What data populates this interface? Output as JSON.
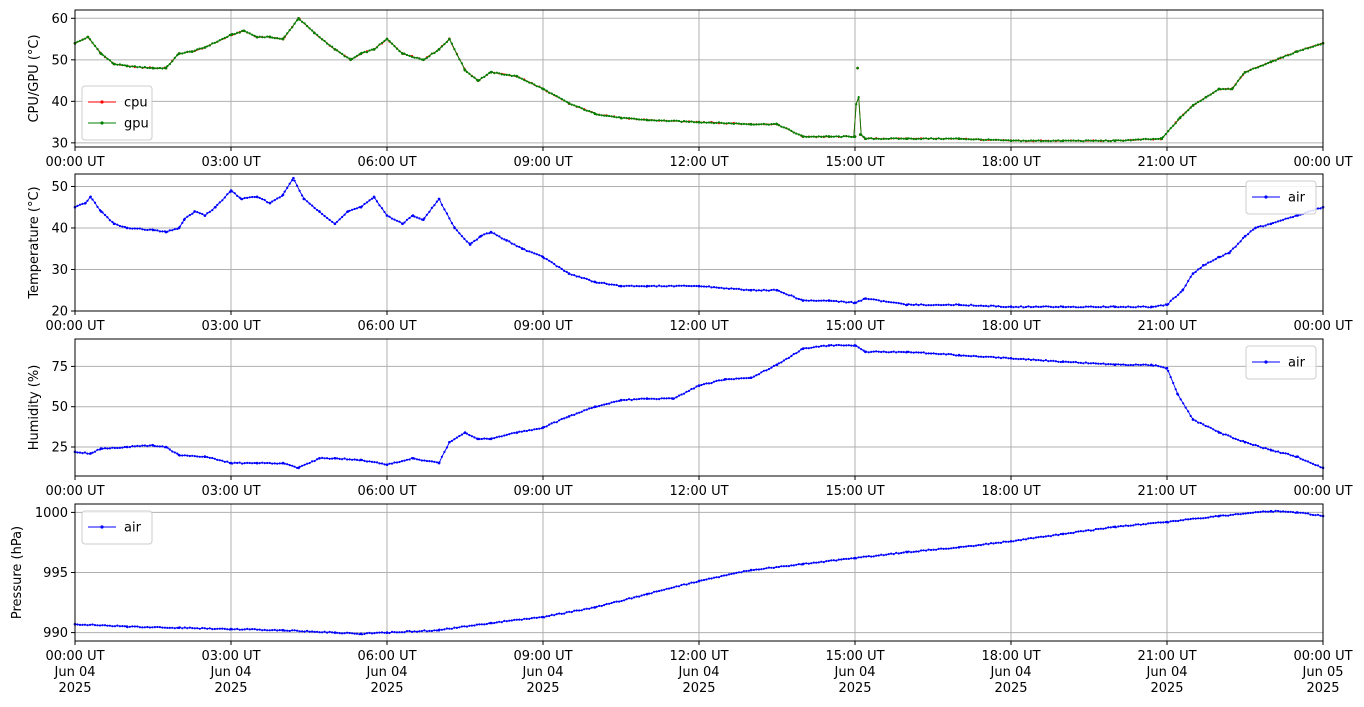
{
  "chart_data": [
    {
      "type": "line",
      "ylabel": "CPU/GPU (°C)",
      "xlim": [
        "00:00",
        "24:00"
      ],
      "ylim": [
        29,
        62
      ],
      "yticks": [
        30,
        40,
        50,
        60
      ],
      "xtick_labels": [
        "00:00 UT",
        "03:00 UT",
        "06:00 UT",
        "09:00 UT",
        "12:00 UT",
        "15:00 UT",
        "18:00 UT",
        "21:00 UT",
        "00:00 UT"
      ],
      "grid": true,
      "legend": "lower-left",
      "x": [
        0,
        0.25,
        0.5,
        0.75,
        1,
        1.5,
        1.75,
        2,
        2.25,
        2.5,
        3,
        3.25,
        3.5,
        3.75,
        4,
        4.3,
        4.6,
        5,
        5.3,
        5.5,
        5.75,
        6,
        6.3,
        6.7,
        7,
        7.2,
        7.5,
        7.75,
        8,
        8.5,
        9,
        9.5,
        10,
        10.5,
        11,
        12,
        13,
        13.5,
        14,
        14.5,
        15,
        15.05,
        15.1,
        15.2,
        16,
        17,
        18,
        19,
        20,
        20.9,
        21.25,
        21.5,
        21.75,
        22,
        22.25,
        22.5,
        23,
        23.5,
        24
      ],
      "series": [
        {
          "name": "cpu",
          "color": "#e00000",
          "values": [
            54,
            55.5,
            51.5,
            49,
            48.5,
            48,
            48,
            51.5,
            52,
            53,
            56,
            57,
            55.5,
            55.5,
            55,
            60,
            56.5,
            52.5,
            50,
            51.5,
            52.5,
            55,
            51.5,
            50,
            52.5,
            55,
            47.5,
            45,
            47,
            46,
            43,
            39.5,
            37,
            36,
            35.5,
            35,
            34.5,
            34.5,
            31.5,
            31.5,
            31.5,
            48,
            32,
            31,
            31,
            31,
            30.5,
            30.5,
            30.5,
            31,
            36,
            39,
            41,
            43,
            43,
            47,
            49.5,
            52,
            54
          ]
        },
        {
          "name": "gpu",
          "color": "#008000",
          "values": [
            54,
            55.5,
            51.5,
            49,
            48.5,
            48,
            48,
            51.5,
            52,
            53,
            56,
            57,
            55.5,
            55.5,
            55,
            60,
            56.5,
            52.5,
            50,
            51.5,
            52.5,
            55,
            51.5,
            50,
            52.5,
            55,
            47.5,
            45,
            47,
            46,
            43,
            39.5,
            37,
            36,
            35.5,
            35,
            34.5,
            34.5,
            31.5,
            31.5,
            31.5,
            48,
            32,
            31,
            31,
            31,
            30.5,
            30.5,
            30.5,
            31,
            36,
            39,
            41,
            43,
            43,
            47,
            49.5,
            52,
            54
          ]
        }
      ]
    },
    {
      "type": "line",
      "ylabel": "Temperature (°C)",
      "xlim": [
        "00:00",
        "24:00"
      ],
      "ylim": [
        20,
        53
      ],
      "yticks": [
        20,
        30,
        40,
        50
      ],
      "xtick_labels": [
        "00:00 UT",
        "03:00 UT",
        "06:00 UT",
        "09:00 UT",
        "12:00 UT",
        "15:00 UT",
        "18:00 UT",
        "21:00 UT",
        "00:00 UT"
      ],
      "grid": true,
      "legend": "upper-right",
      "x": [
        0,
        0.2,
        0.3,
        0.5,
        0.75,
        1,
        1.5,
        1.75,
        2,
        2.1,
        2.3,
        2.5,
        2.7,
        3,
        3.2,
        3.5,
        3.75,
        4,
        4.2,
        4.4,
        4.7,
        5,
        5.25,
        5.5,
        5.75,
        6,
        6.3,
        6.5,
        6.7,
        7,
        7.3,
        7.6,
        7.8,
        8,
        8.3,
        8.6,
        9,
        9.5,
        10,
        10.5,
        11,
        12,
        13,
        13.5,
        14,
        14.5,
        15,
        15.2,
        16,
        17,
        18,
        19,
        20,
        20.7,
        21,
        21.3,
        21.5,
        21.7,
        22,
        22.2,
        22.5,
        22.7,
        23,
        23.5,
        24
      ],
      "series": [
        {
          "name": "air",
          "color": "#0000ff",
          "values": [
            45,
            46,
            47.5,
            44,
            41,
            40,
            39.5,
            39,
            40,
            42,
            44,
            43,
            45,
            49,
            47,
            47.5,
            46,
            48,
            52,
            47,
            44,
            41,
            44,
            45,
            47.5,
            43,
            41,
            43,
            42,
            47,
            40,
            36,
            38,
            39,
            37,
            35,
            33,
            29,
            27,
            26,
            26,
            26,
            25,
            25,
            22.5,
            22.5,
            22,
            23,
            21.5,
            21.5,
            21,
            21,
            21,
            21,
            21.5,
            25,
            29,
            31,
            33,
            34,
            38,
            40,
            41,
            43,
            45
          ]
        }
      ]
    },
    {
      "type": "line",
      "ylabel": "Humidity (%)",
      "xlim": [
        "00:00",
        "24:00"
      ],
      "ylim": [
        7,
        92
      ],
      "yticks": [
        25,
        50,
        75
      ],
      "xtick_labels": [
        "00:00 UT",
        "03:00 UT",
        "06:00 UT",
        "09:00 UT",
        "12:00 UT",
        "15:00 UT",
        "18:00 UT",
        "21:00 UT",
        "00:00 UT"
      ],
      "grid": true,
      "legend": "upper-right",
      "x": [
        0,
        0.3,
        0.5,
        1,
        1.5,
        1.75,
        2,
        2.5,
        3,
        3.5,
        4,
        4.3,
        4.7,
        5,
        5.5,
        6,
        6.5,
        7,
        7.2,
        7.5,
        7.75,
        8,
        8.5,
        9,
        9.5,
        10,
        10.5,
        11,
        11.5,
        12,
        12.5,
        13,
        13.5,
        14,
        14.5,
        15,
        15.2,
        16,
        17,
        18,
        19,
        20,
        20.7,
        21,
        21.2,
        21.5,
        22,
        22.5,
        23,
        23.5,
        24
      ],
      "series": [
        {
          "name": "air",
          "color": "#0000ff",
          "values": [
            22,
            21,
            24,
            25,
            26,
            25,
            20,
            19,
            15,
            15,
            15,
            12,
            18,
            18,
            17,
            14,
            18,
            15,
            28,
            34,
            30,
            30,
            34,
            37,
            44,
            50,
            54,
            55,
            55,
            63,
            67,
            68,
            76,
            86,
            88,
            88,
            84,
            84,
            82,
            80,
            78,
            76,
            76,
            74,
            58,
            42,
            34,
            28,
            23,
            19,
            12
          ]
        }
      ]
    },
    {
      "type": "line",
      "ylabel": "Pressure (hPa)",
      "xlim": [
        "00:00",
        "24:00"
      ],
      "ylim": [
        989.3,
        1000.7
      ],
      "yticks": [
        990,
        995,
        1000
      ],
      "xtick_labels": [
        "00:00 UT",
        "03:00 UT",
        "06:00 UT",
        "09:00 UT",
        "12:00 UT",
        "15:00 UT",
        "18:00 UT",
        "21:00 UT",
        "00:00 UT"
      ],
      "xtick_dates": [
        "Jun 04",
        "Jun 04",
        "Jun 04",
        "Jun 04",
        "Jun 04",
        "Jun 04",
        "Jun 04",
        "Jun 04",
        "Jun 05"
      ],
      "xtick_years": [
        "2025",
        "2025",
        "2025",
        "2025",
        "2025",
        "2025",
        "2025",
        "2025",
        "2025"
      ],
      "grid": true,
      "legend": "upper-left",
      "x": [
        0,
        1,
        2,
        3,
        4,
        5,
        5.5,
        6,
        7,
        8,
        9,
        10,
        11,
        12,
        13,
        14,
        15,
        16,
        17,
        18,
        19,
        20,
        21,
        22,
        23,
        23.5,
        24
      ],
      "series": [
        {
          "name": "air",
          "color": "#0000ff",
          "values": [
            990.7,
            990.5,
            990.4,
            990.3,
            990.2,
            990,
            989.9,
            990,
            990.2,
            990.8,
            991.3,
            992.1,
            993.2,
            994.3,
            995.2,
            995.7,
            996.2,
            996.7,
            997.1,
            997.6,
            998.2,
            998.8,
            999.2,
            999.7,
            1000.1,
            1000,
            999.7
          ]
        }
      ]
    }
  ]
}
